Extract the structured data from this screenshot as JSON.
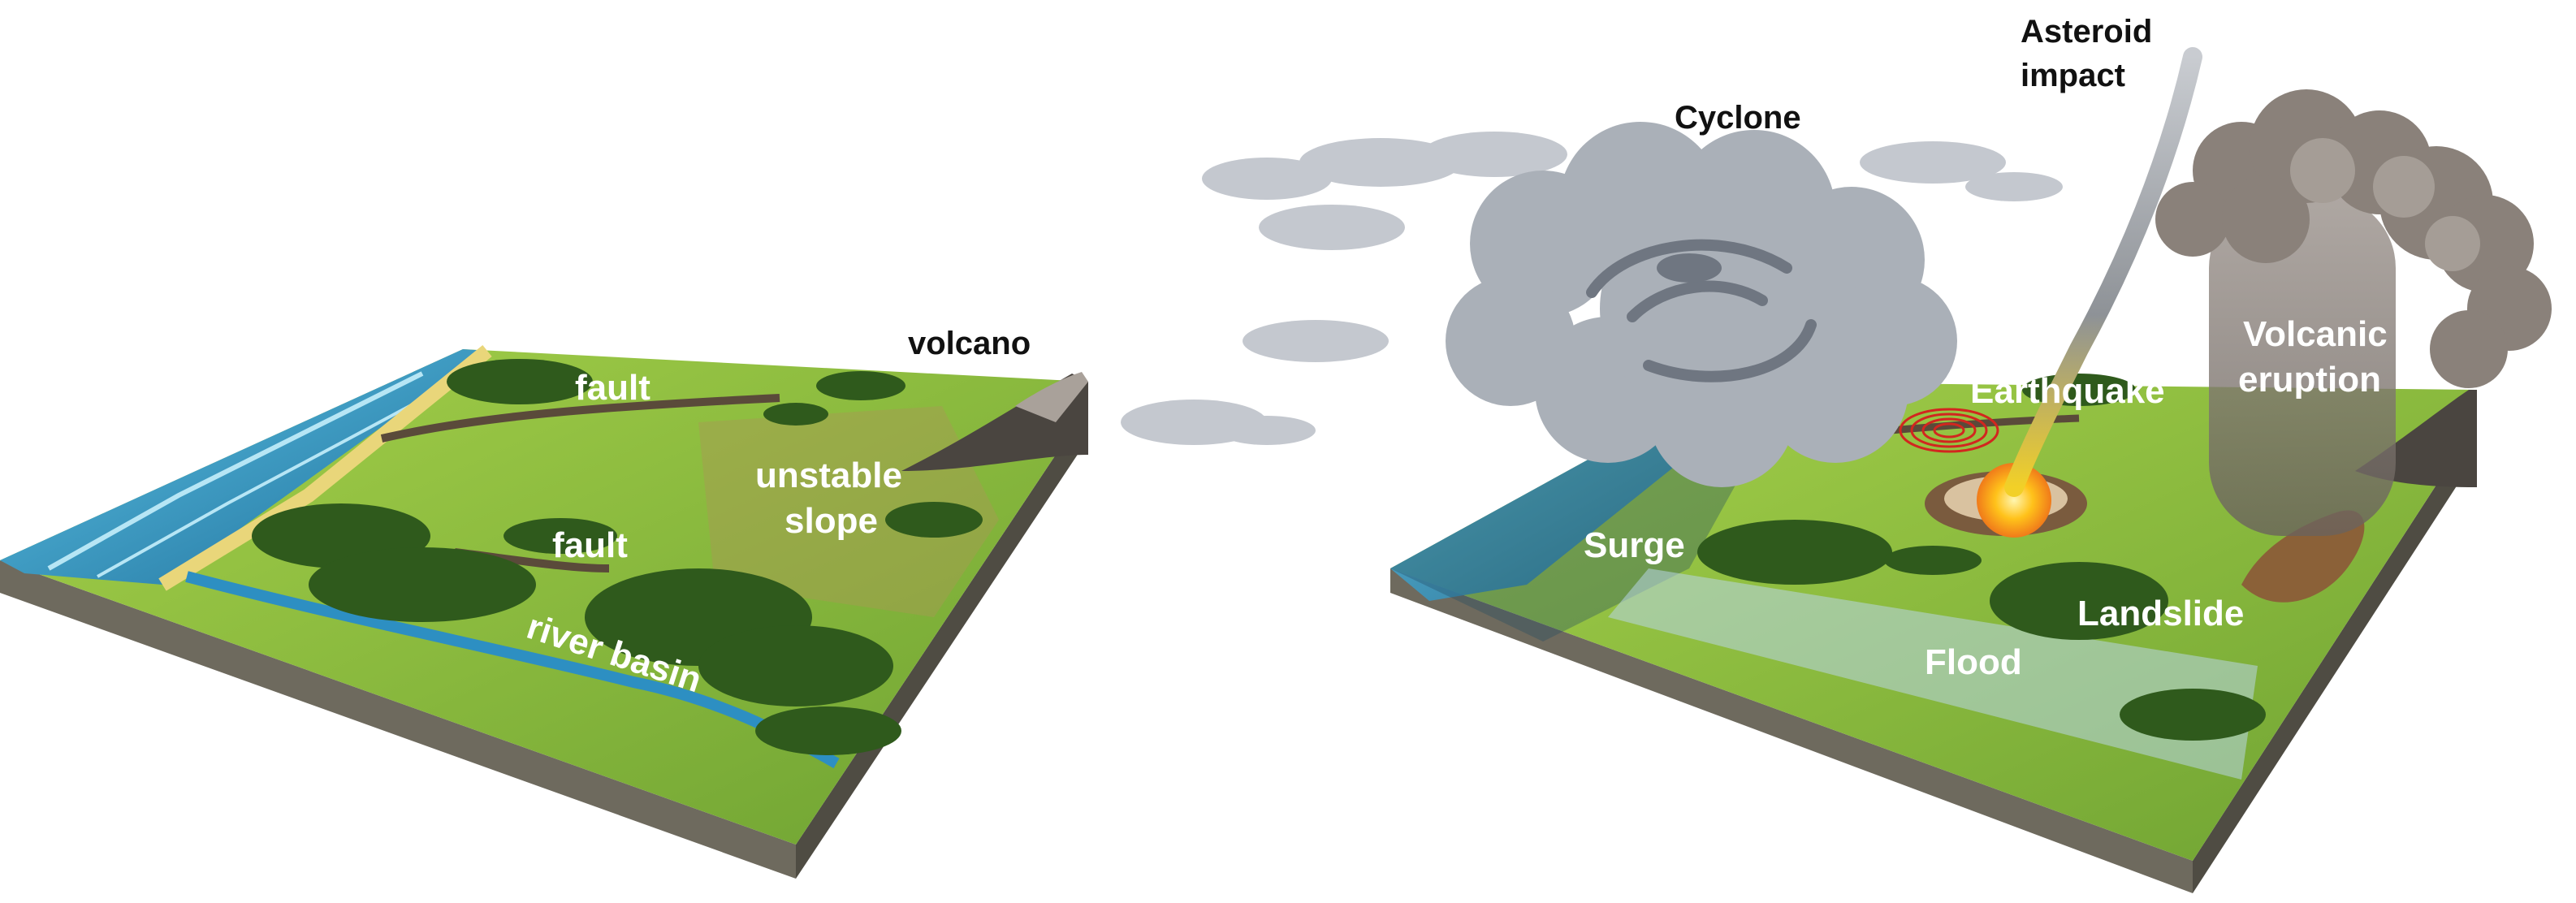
{
  "left_panel": {
    "labels": {
      "volcano": "volcano",
      "fault_top": "fault",
      "fault_mid": "fault",
      "unstable_line1": "unstable",
      "unstable_line2": "slope",
      "river_basin": "river basin"
    }
  },
  "right_panel": {
    "labels": {
      "cyclone": "Cyclone",
      "asteroid_line1": "Asteroid",
      "asteroid_line2": "impact",
      "volcanic_line1": "Volcanic",
      "volcanic_line2": "eruption",
      "earthquake": "Earthquake",
      "surge": "Surge",
      "landslide": "Landslide",
      "flood": "Flood"
    }
  },
  "colors": {
    "grass": "#7fb43a",
    "grass_light": "#9ccb43",
    "forest": "#2f5a1c",
    "water": "#3a9fcd",
    "soil_front": "#6e6a5e",
    "soil_side": "#4f4c43",
    "cloud": "#b9bec7",
    "cloud_dark": "#6f7681",
    "ash": "#7b716a",
    "fire": "#f5a623"
  }
}
